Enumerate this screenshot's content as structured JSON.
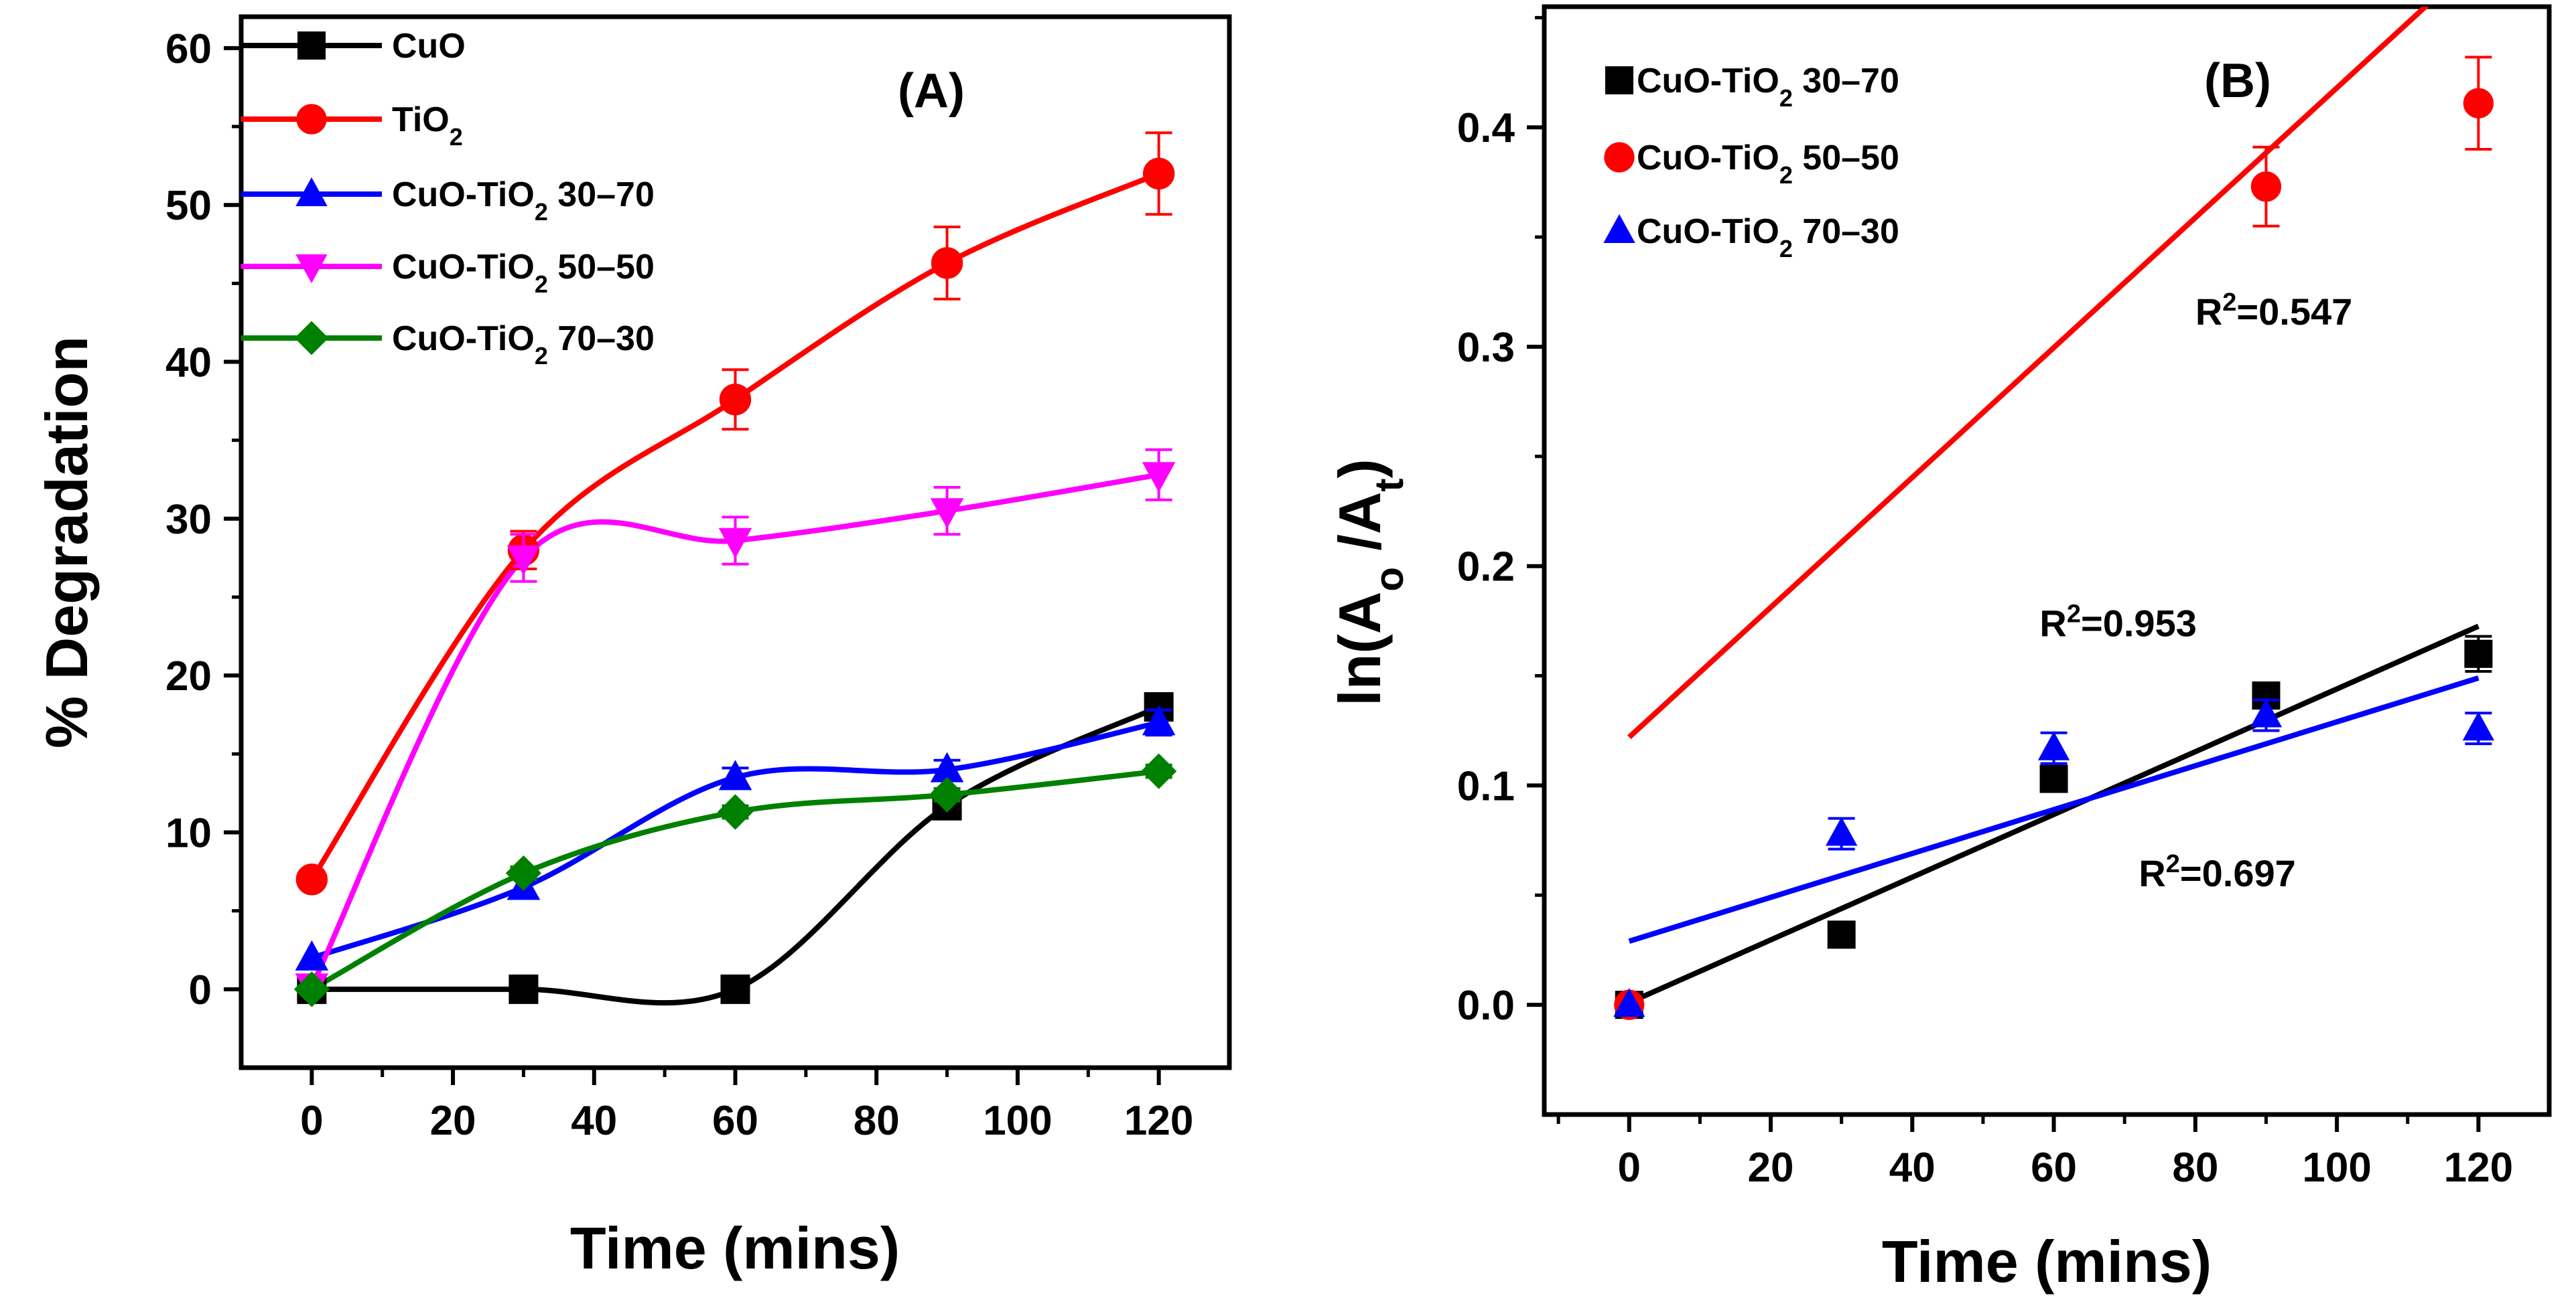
{
  "chart_data": [
    {
      "panel_label": "(A)",
      "type": "line",
      "xlabel": "Time (mins)",
      "ylabel": "% Degradation",
      "xlim": [
        -10,
        130
      ],
      "ylim": [
        -5,
        62
      ],
      "x_ticks": [
        "0",
        "20",
        "40",
        "60",
        "80",
        "100",
        "120"
      ],
      "y_ticks": [
        "0",
        "10",
        "20",
        "30",
        "40",
        "50",
        "60"
      ],
      "legend_position": "top-left",
      "series": [
        {
          "name": "CuO",
          "sub": "",
          "suffix": "",
          "color": "#000000",
          "marker": "square",
          "x": [
            0,
            30,
            60,
            90,
            120
          ],
          "values": [
            0,
            0,
            0,
            11.7,
            18
          ],
          "err": [
            0,
            0,
            0,
            0.6,
            0.6
          ]
        },
        {
          "name": "TiO",
          "sub": "2",
          "suffix": "",
          "color": "#ff0000",
          "marker": "circle",
          "x": [
            0,
            30,
            60,
            90,
            120
          ],
          "values": [
            7,
            28,
            37.6,
            46.3,
            52
          ],
          "err": [
            0,
            1.2,
            1.9,
            2.3,
            2.6
          ]
        },
        {
          "name": "CuO-TiO",
          "sub": "2",
          "suffix": " 30–70",
          "color": "#0000ff",
          "marker": "triangle-up",
          "x": [
            0,
            30,
            60,
            90,
            120
          ],
          "values": [
            2,
            6.5,
            13.5,
            14,
            17
          ],
          "err": [
            0,
            0.6,
            0.6,
            0.6,
            0.8
          ]
        },
        {
          "name": "CuO-TiO",
          "sub": "2",
          "suffix": " 50–50",
          "color": "#ff00ff",
          "marker": "triangle-down",
          "x": [
            0,
            30,
            60,
            90,
            120
          ],
          "values": [
            0.2,
            27.5,
            28.6,
            30.5,
            32.8
          ],
          "err": [
            0,
            1.5,
            1.5,
            1.5,
            1.6
          ]
        },
        {
          "name": "CuO-TiO",
          "sub": "2",
          "suffix": " 70–30",
          "color": "#008000",
          "marker": "diamond",
          "x": [
            0,
            30,
            60,
            90,
            120
          ],
          "values": [
            0,
            7.4,
            11.3,
            12.4,
            13.9
          ],
          "err": [
            0,
            0.4,
            0.4,
            0.4,
            0.4
          ]
        }
      ]
    },
    {
      "panel_label": "(B)",
      "type": "scatter",
      "xlabel": "Time (mins)",
      "ylabel_parts": [
        "ln(A",
        "o",
        " /A",
        "t",
        ")"
      ],
      "xlim": [
        -12,
        130
      ],
      "ylim": [
        -0.05,
        0.455
      ],
      "x_ticks": [
        "0",
        "20",
        "40",
        "60",
        "80",
        "100",
        "120"
      ],
      "y_ticks": [
        "0.0",
        "0.1",
        "0.2",
        "0.3",
        "0.4"
      ],
      "legend_position": "top-left",
      "series": [
        {
          "name": "CuO-TiO",
          "sub": "2",
          "suffix": " 30–70",
          "color": "#000000",
          "marker": "square",
          "x": [
            0,
            30,
            60,
            90,
            120
          ],
          "values": [
            0,
            0.032,
            0.103,
            0.141,
            0.16
          ],
          "err": [
            0,
            0,
            0,
            0,
            0.008
          ],
          "fit": {
            "intercept": 0.001,
            "slope": 0.00143
          }
        },
        {
          "name": "CuO-TiO",
          "sub": "2",
          "suffix": " 50–50",
          "color": "#ff0000",
          "marker": "circle",
          "x": [
            0,
            120,
            90
          ],
          "values": [
            0,
            0.411,
            0.373
          ],
          "err": [
            0,
            0.021,
            0.018
          ],
          "fit": {
            "intercept": 0.122,
            "slope": 0.00296
          }
        },
        {
          "name": "CuO-TiO",
          "sub": "2",
          "suffix": " 70–30",
          "color": "#0000ff",
          "marker": "triangle-up",
          "x": [
            0,
            30,
            60,
            90,
            120
          ],
          "values": [
            0,
            0.078,
            0.117,
            0.132,
            0.126
          ],
          "err": [
            0,
            0.007,
            0.007,
            0.007,
            0.007
          ],
          "fit": {
            "intercept": 0.029,
            "slope": 0.001
          }
        }
      ],
      "annotations": [
        {
          "base": "R",
          "sup": "2",
          "value": "=0.547",
          "x": 80,
          "y": 0.31
        },
        {
          "base": "R",
          "sup": "2",
          "value": "=0.953",
          "x": 58,
          "y": 0.168
        },
        {
          "base": "R",
          "sup": "2",
          "value": "=0.697",
          "x": 72,
          "y": 0.054
        }
      ]
    }
  ]
}
